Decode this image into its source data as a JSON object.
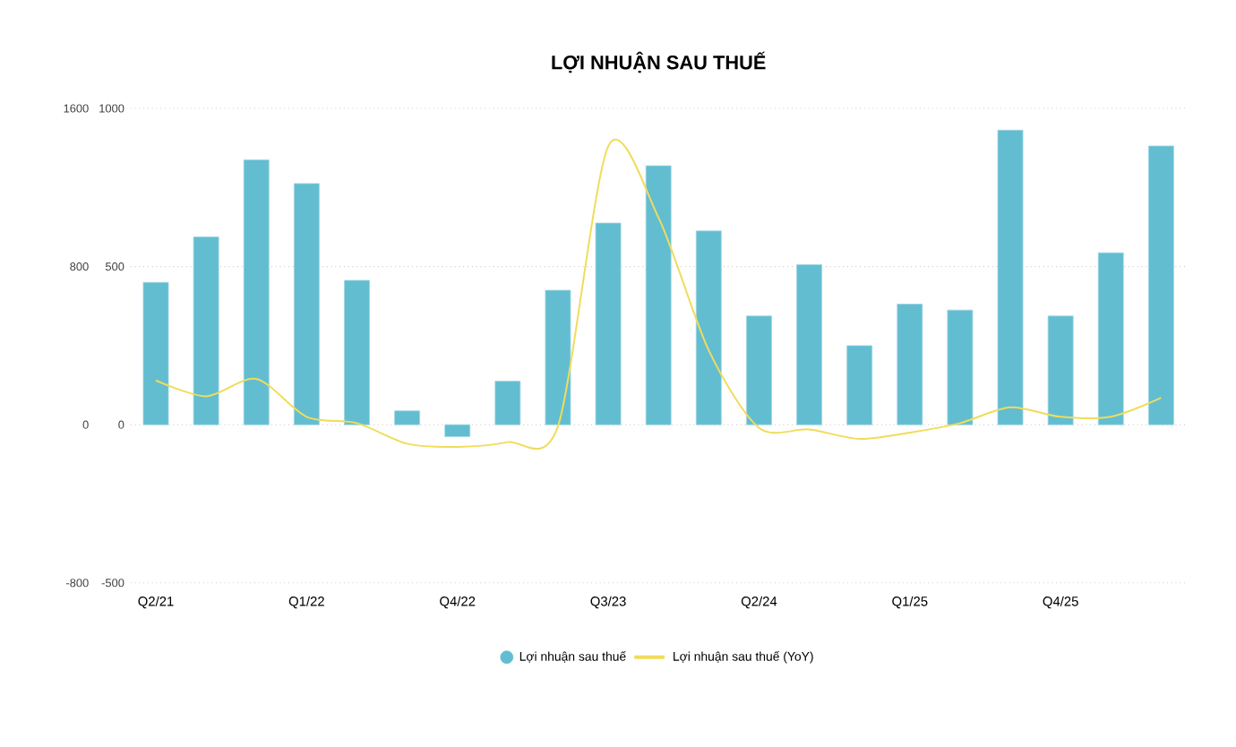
{
  "chart_data": {
    "type": "bar",
    "title": "LỢI NHUẬN SAU THUẾ",
    "categories": [
      "Q2/21",
      null,
      null,
      "Q1/22",
      null,
      null,
      "Q4/22",
      null,
      null,
      "Q3/23",
      null,
      null,
      "Q2/24",
      null,
      null,
      "Q1/25",
      null,
      null,
      "Q4/25",
      null,
      null
    ],
    "series": [
      {
        "name": "Lợi nhuận sau thuế",
        "color": "#62bdd1",
        "values": [
          720,
          950,
          1340,
          1220,
          730,
          70,
          -60,
          220,
          680,
          1020,
          1310,
          980,
          550,
          810,
          400,
          610,
          580,
          1490,
          550,
          870,
          1410
        ]
      },
      {
        "name": "Lợi nhuận sau thuế (YoY)",
        "type": "line",
        "axis": "y2",
        "color": "#f0dc5a",
        "values": [
          140,
          90,
          145,
          25,
          5,
          -60,
          -70,
          -55,
          -5,
          880,
          655,
          235,
          -10,
          -15,
          -45,
          -25,
          5,
          55,
          25,
          25,
          85
        ]
      }
    ],
    "ylim": [
      -800,
      1600
    ],
    "yticks": [
      -800,
      0,
      800,
      1600
    ],
    "y2lim": [
      -500,
      1000
    ],
    "y2ticks": [
      -500,
      0,
      500,
      1000
    ],
    "grid": "y",
    "legend": "bottom",
    "marker": "none"
  }
}
